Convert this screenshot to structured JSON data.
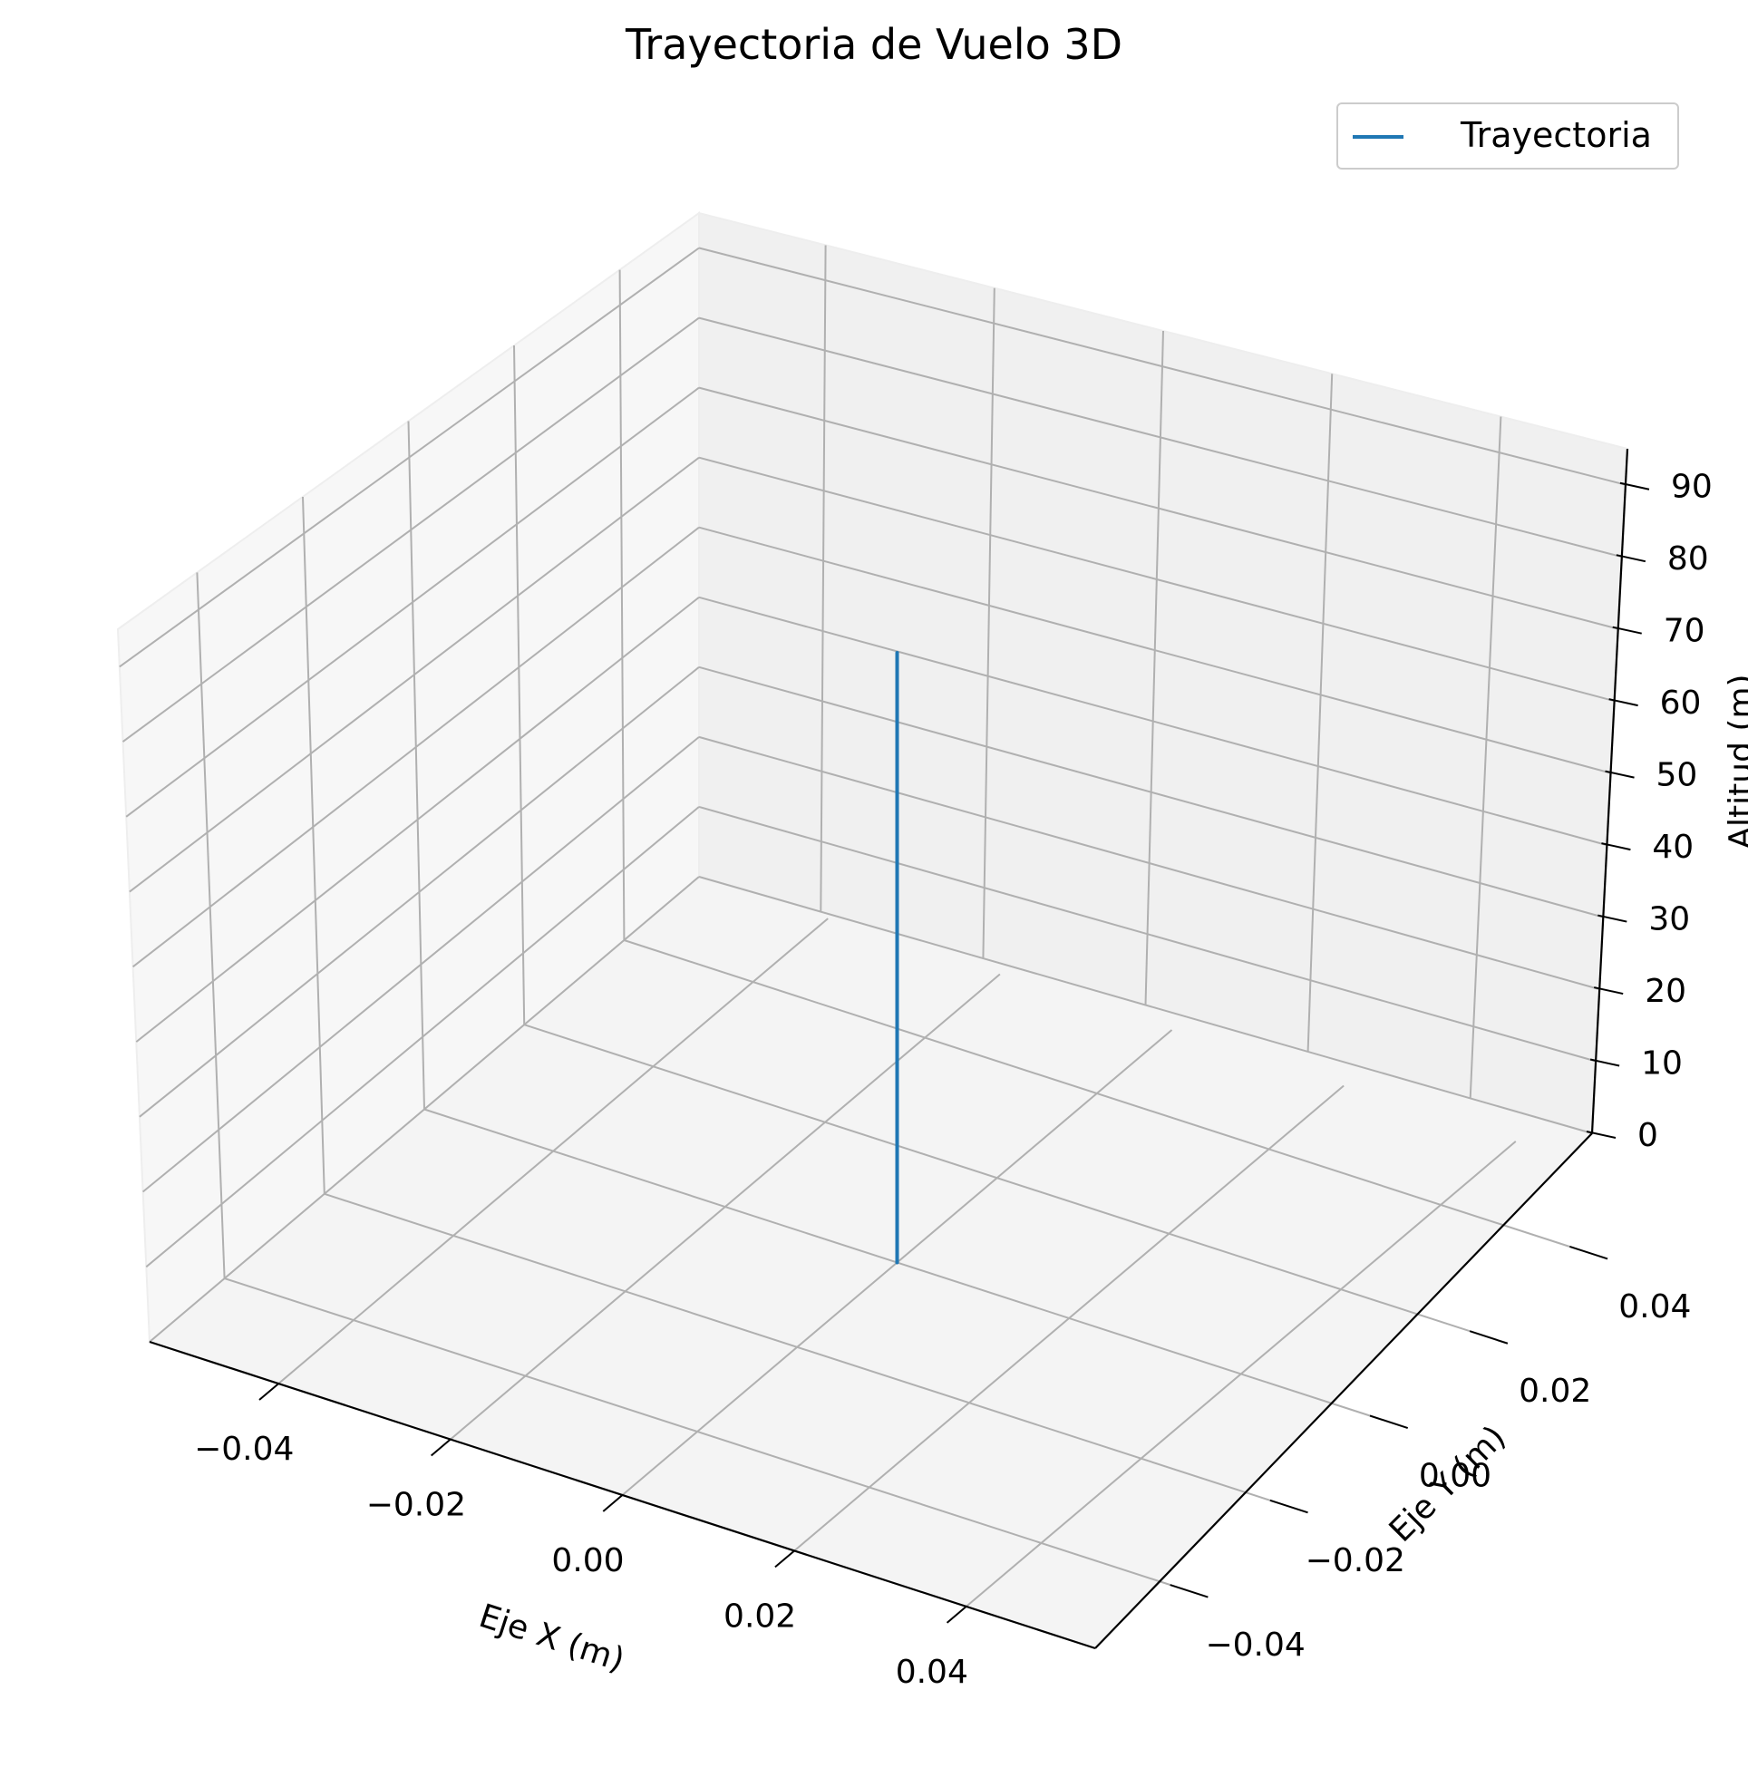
{
  "chart_data": {
    "type": "line3d",
    "title": "Trayectoria de Vuelo 3D",
    "xlabel": "Eje X (m)",
    "ylabel": "Eje Y (m)",
    "zlabel": "Altitud (m)",
    "x_ticks": [
      -0.04,
      -0.02,
      0.0,
      0.02,
      0.04
    ],
    "x_tick_labels": [
      "−0.04",
      "−0.02",
      "0.00",
      "0.02",
      "0.04"
    ],
    "y_ticks": [
      -0.04,
      -0.02,
      0.0,
      0.02,
      0.04
    ],
    "y_tick_labels": [
      "−0.04",
      "−0.02",
      "0.00",
      "0.02",
      "0.04"
    ],
    "z_ticks": [
      0,
      10,
      20,
      30,
      40,
      50,
      60,
      70,
      80,
      90
    ],
    "z_tick_labels": [
      "0",
      "10",
      "20",
      "30",
      "40",
      "50",
      "60",
      "70",
      "80",
      "90"
    ],
    "xlim": [
      -0.055,
      0.055
    ],
    "ylim": [
      -0.055,
      0.055
    ],
    "zlim": [
      0,
      95
    ],
    "grid": true,
    "legend_position": "top-right",
    "series": [
      {
        "name": "Trayectoria",
        "color": "#1f77b4",
        "x": [
          0,
          0
        ],
        "y": [
          0,
          0
        ],
        "z": [
          0,
          80
        ]
      }
    ]
  }
}
